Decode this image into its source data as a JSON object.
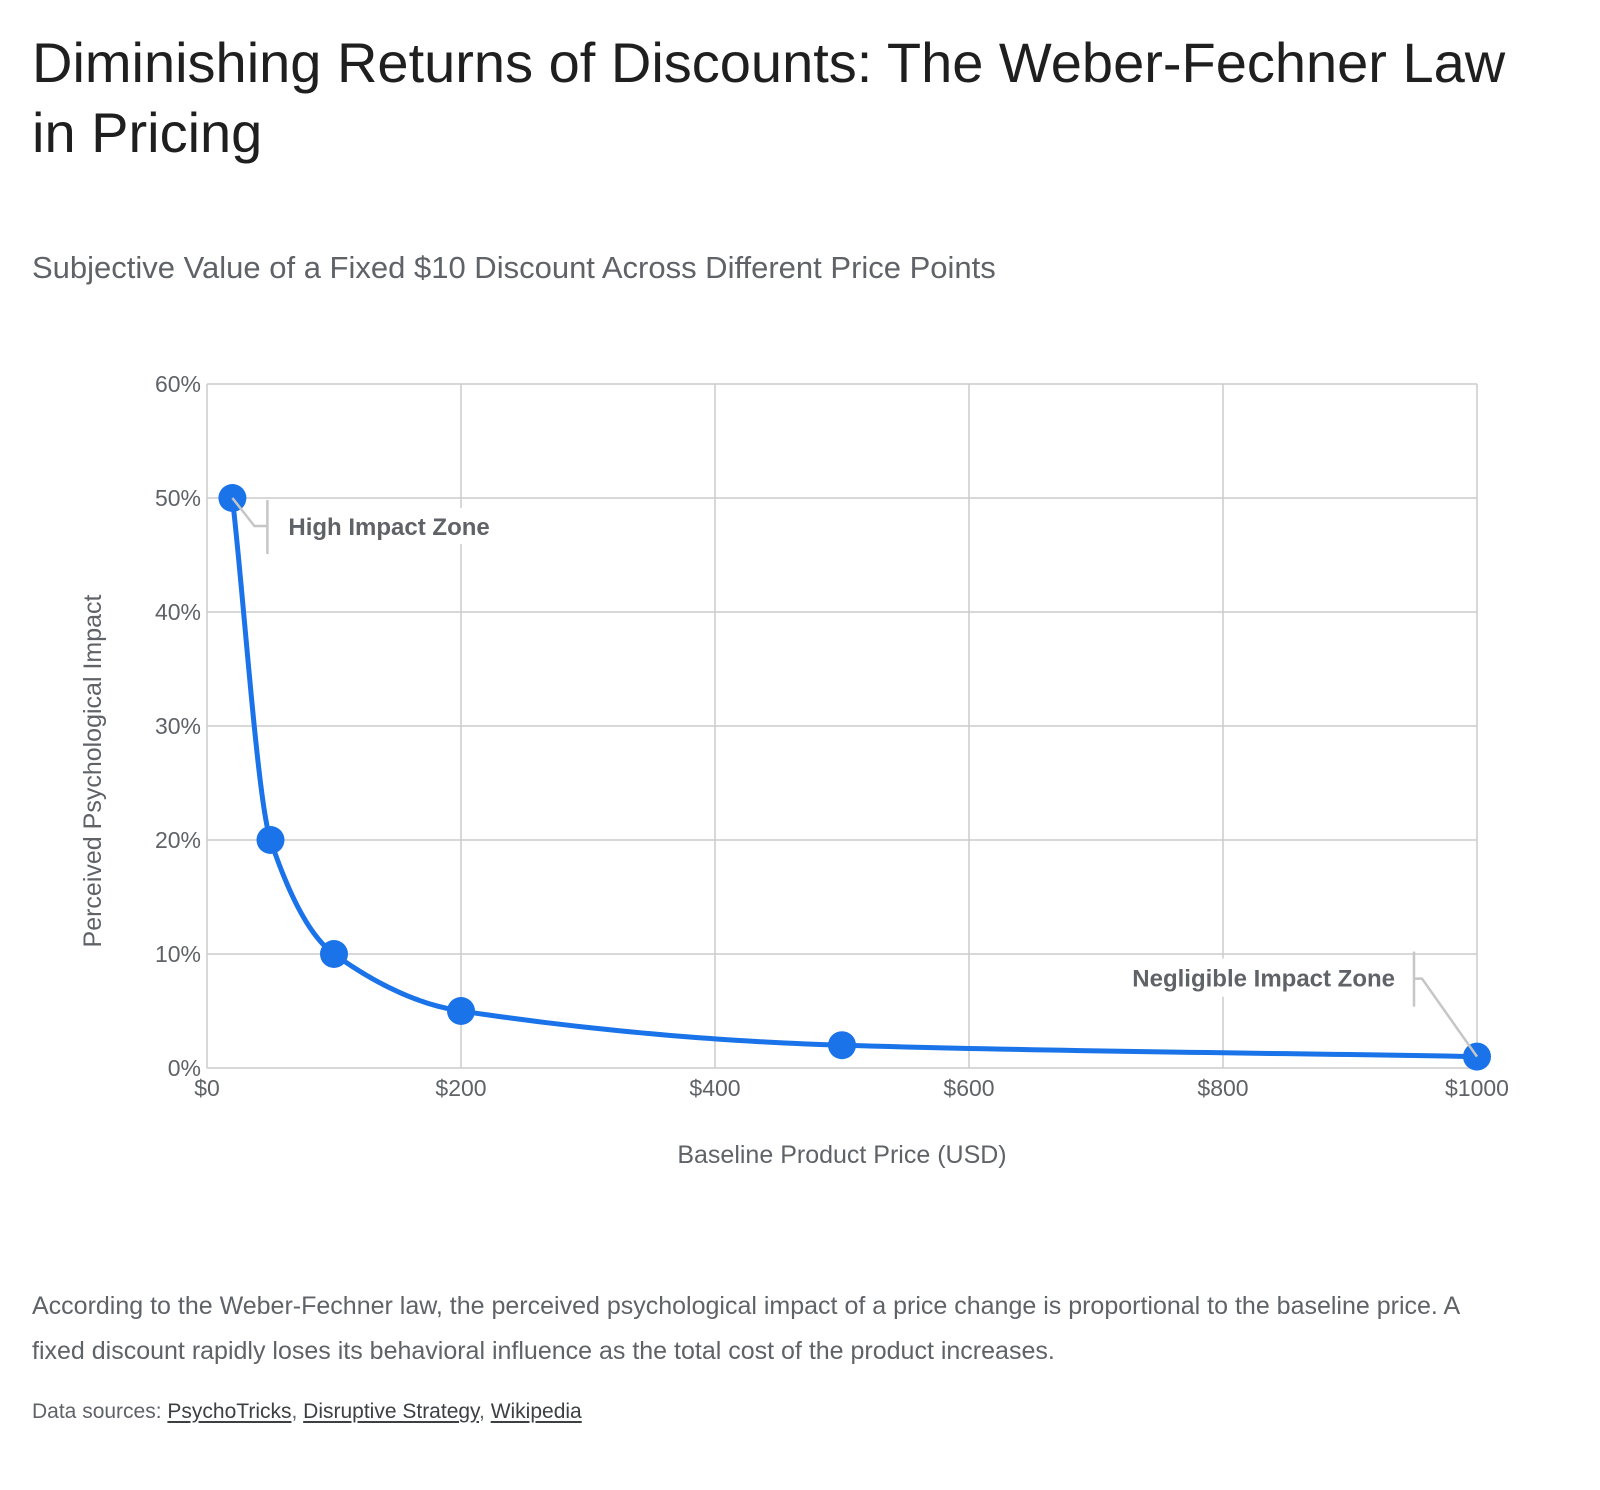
{
  "page": {
    "title": "Diminishing Returns of Discounts: The Weber-Fechner Law in Pricing",
    "subtitle": "Subjective Value of a Fixed $10 Discount Across Different Price Points",
    "description": "According to the Weber-Fechner law, the perceived psychological impact of a price change is proportional to the baseline price. A fixed discount rapidly loses its behavioral influence as the total cost of the product increases.",
    "sources_label": "Data sources:",
    "sources": [
      "PsychoTricks",
      "Disruptive Strategy",
      "Wikipedia"
    ]
  },
  "chart_data": {
    "type": "line",
    "title": "",
    "xlabel": "Baseline Product Price (USD)",
    "ylabel": "Perceived Psychological Impact",
    "x": [
      20,
      50,
      100,
      200,
      500,
      1000
    ],
    "series": [
      {
        "name": "",
        "values": [
          50,
          20,
          10,
          5,
          2,
          1
        ]
      }
    ],
    "xlim": [
      0,
      1000
    ],
    "ylim": [
      0,
      60
    ],
    "x_ticks": [
      0,
      200,
      400,
      600,
      800,
      1000
    ],
    "x_tick_labels": [
      "$0",
      "$200",
      "$400",
      "$600",
      "$800",
      "$1000"
    ],
    "y_ticks": [
      0,
      10,
      20,
      30,
      40,
      50,
      60
    ],
    "y_tick_labels": [
      "0%",
      "10%",
      "20%",
      "30%",
      "40%",
      "50%",
      "60%"
    ],
    "grid": true,
    "curve": "smooth",
    "line_color": "#1a73e8",
    "grid_color": "#cccccc",
    "annotations": [
      {
        "text": "High Impact Zone",
        "x": 20,
        "y": 50,
        "placement": "right"
      },
      {
        "text": "Negligible Impact Zone",
        "x": 1000,
        "y": 1,
        "placement": "left"
      }
    ]
  }
}
